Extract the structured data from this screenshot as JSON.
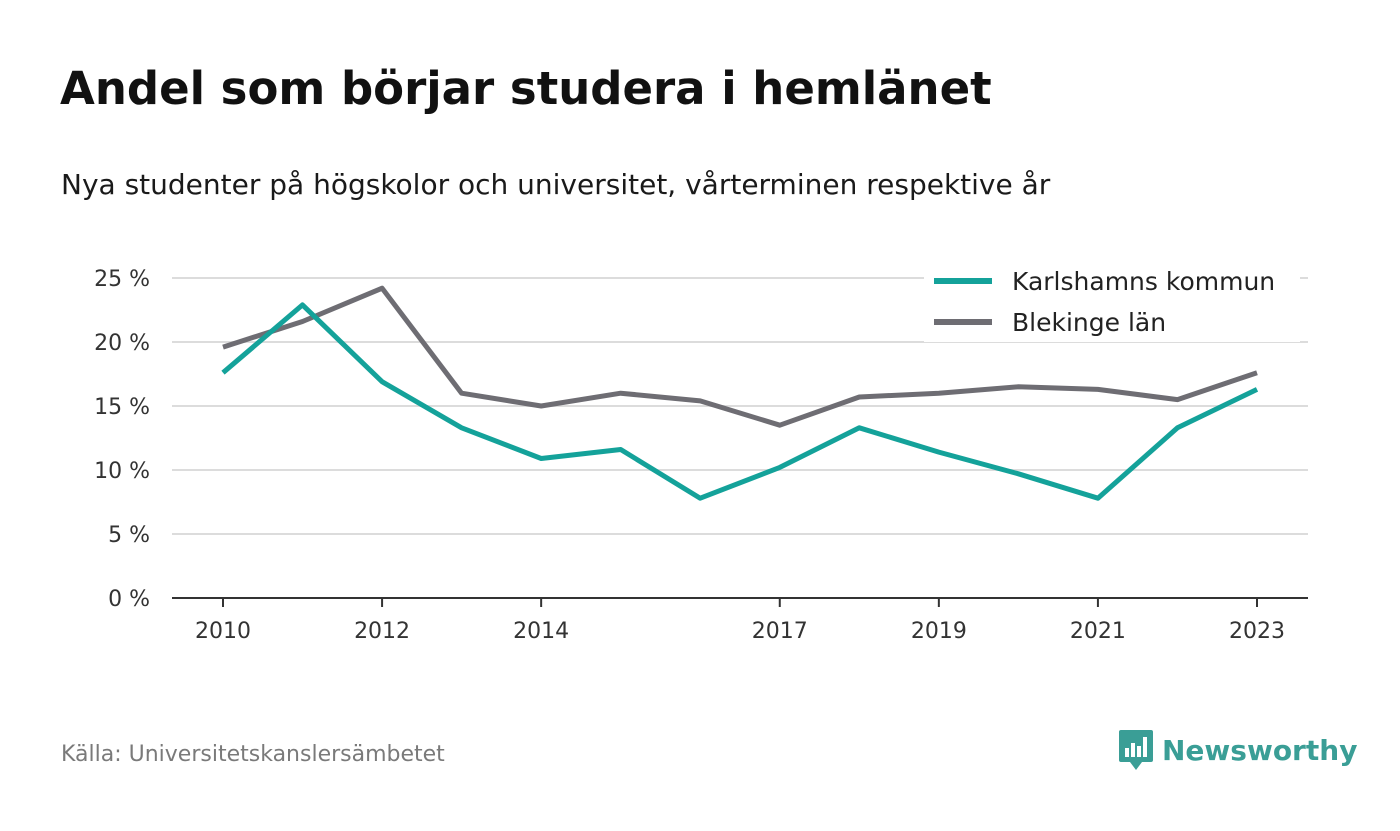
{
  "title": "Andel som börjar studera i hemlänet",
  "subtitle": "Nya studenter på högskolor och universitet, vårterminen respektive år",
  "source": "Källa: Universitetskanslersämbetet",
  "brand": {
    "name": "Newsworthy",
    "icon": "newsworthy-logo-icon",
    "color": "#3a9e96"
  },
  "chart_data": {
    "type": "line",
    "x": [
      2010,
      2011,
      2012,
      2013,
      2014,
      2015,
      2016,
      2017,
      2018,
      2019,
      2020,
      2021,
      2022,
      2023
    ],
    "x_tick_labels": [
      "2010",
      "2012",
      "2014",
      "2017",
      "2019",
      "2021",
      "2023"
    ],
    "y_ticks": [
      0,
      5,
      10,
      15,
      20,
      25
    ],
    "y_tick_labels": [
      "0 %",
      "5 %",
      "10 %",
      "15 %",
      "20 %",
      "25 %"
    ],
    "ylim": [
      0,
      25
    ],
    "grid": true,
    "legend_position": "top-right",
    "series": [
      {
        "name": "Karlshamns kommun",
        "color": "#14a29a",
        "values": [
          17.6,
          22.9,
          16.9,
          13.3,
          10.9,
          11.6,
          7.8,
          10.2,
          13.3,
          11.4,
          9.7,
          7.8,
          13.3,
          16.3
        ]
      },
      {
        "name": "Blekinge län",
        "color": "#6e6d73",
        "values": [
          19.6,
          21.6,
          24.2,
          16.0,
          15.0,
          16.0,
          15.4,
          13.5,
          15.7,
          16.0,
          16.5,
          16.3,
          15.5,
          17.6
        ]
      }
    ]
  }
}
